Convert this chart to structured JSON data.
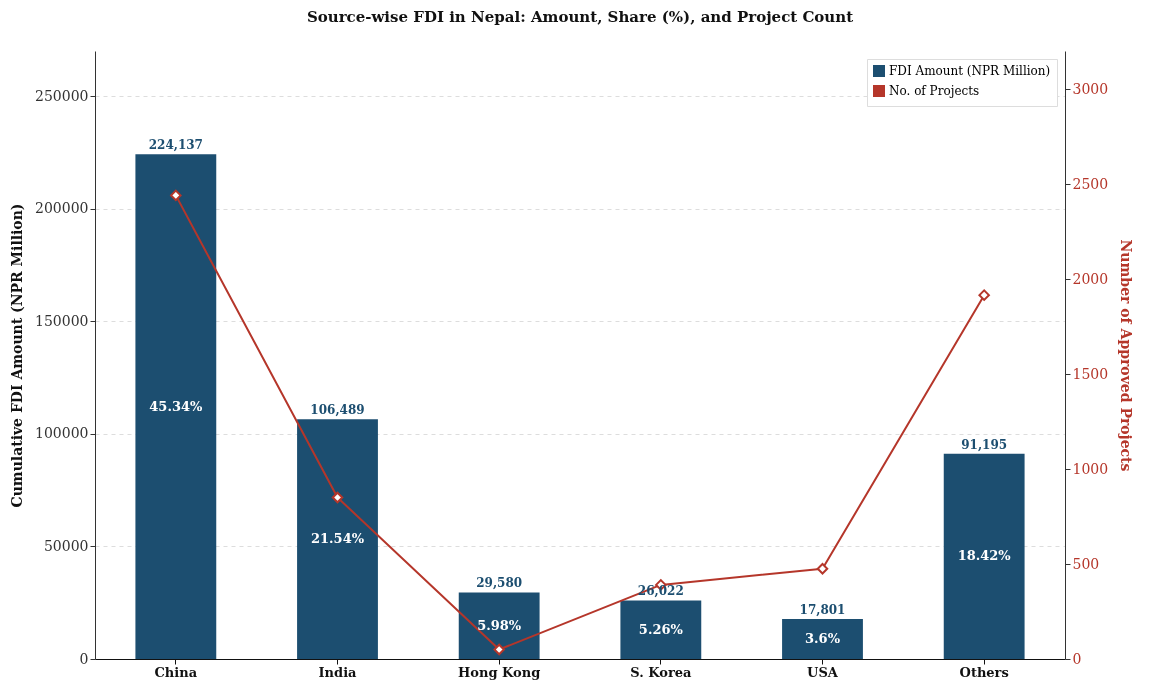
{
  "chart_data": {
    "type": "bar",
    "title": "Source-wise FDI in Nepal: Amount, Share (%), and Project Count",
    "ylabel": "Cumulative FDI Amount (NPR Million)",
    "y2label": "Number of Approved Projects",
    "categories": [
      "China",
      "India",
      "Hong Kong",
      "S. Korea",
      "USA",
      "Others"
    ],
    "series": [
      {
        "name": "FDI Amount (NPR Million)",
        "color": "#1c4e70",
        "values": [
          224137,
          106489,
          29580,
          26022,
          17801,
          91195
        ],
        "value_labels": [
          "224,137",
          "106,489",
          "29,580",
          "26,022",
          "17,801",
          "91,195"
        ]
      },
      {
        "name": "No. of Projects",
        "type": "line",
        "axis": "y2",
        "color": "#b5362a",
        "values": [
          2440,
          850,
          50,
          390,
          475,
          1915
        ]
      }
    ],
    "annotations": [
      "45.34%",
      "21.54%",
      "5.98%",
      "5.26%",
      "3.6%",
      "18.42%"
    ],
    "ylim": [
      0,
      270000
    ],
    "yticks": [
      0,
      50000,
      100000,
      150000,
      200000,
      250000
    ],
    "y2lim": [
      0,
      3200
    ],
    "y2ticks": [
      0,
      500,
      1000,
      1500,
      2000,
      2500,
      3000
    ],
    "grid": "y",
    "legend": "top right",
    "marker": "diamond",
    "line_style": "solid"
  }
}
